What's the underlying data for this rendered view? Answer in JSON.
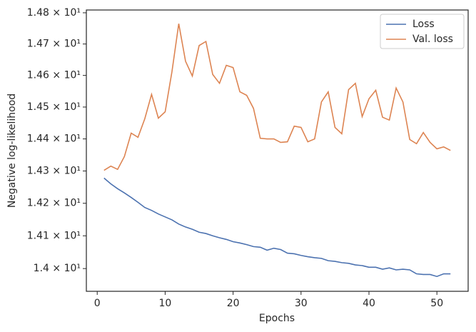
{
  "chart_data": {
    "type": "line",
    "xlabel": "Epochs",
    "ylabel": "Negative log-likelihood",
    "yscale": "log",
    "legend": "upper right",
    "grid": false,
    "xlim": [
      -1.6,
      54.6
    ],
    "xticks": [
      0,
      10,
      20,
      30,
      40,
      50
    ],
    "ylim": [
      13.931,
      14.809
    ],
    "yticks": [
      {
        "value": 14.0,
        "label": "1.4 × 10¹"
      },
      {
        "value": 14.1,
        "label": "1.41 × 10¹"
      },
      {
        "value": 14.2,
        "label": "1.42 × 10¹"
      },
      {
        "value": 14.3,
        "label": "1.43 × 10¹"
      },
      {
        "value": 14.4,
        "label": "1.44 × 10¹"
      },
      {
        "value": 14.5,
        "label": "1.45 × 10¹"
      },
      {
        "value": 14.6,
        "label": "1.46 × 10¹"
      },
      {
        "value": 14.7,
        "label": "1.47 × 10¹"
      },
      {
        "value": 14.8,
        "label": "1.48 × 10¹"
      }
    ],
    "x": [
      1,
      2,
      3,
      4,
      5,
      6,
      7,
      8,
      9,
      10,
      11,
      12,
      13,
      14,
      15,
      16,
      17,
      18,
      19,
      20,
      21,
      22,
      23,
      24,
      25,
      26,
      27,
      28,
      29,
      30,
      31,
      32,
      33,
      34,
      35,
      36,
      37,
      38,
      39,
      40,
      41,
      42,
      43,
      44,
      45,
      46,
      47,
      48,
      49,
      50,
      51,
      52
    ],
    "series": [
      {
        "name": "Loss",
        "color": "#4c72b0",
        "values": [
          14.278,
          14.26,
          14.245,
          14.232,
          14.218,
          14.203,
          14.187,
          14.178,
          14.167,
          14.158,
          14.149,
          14.136,
          14.127,
          14.12,
          14.111,
          14.107,
          14.1,
          14.094,
          14.089,
          14.082,
          14.078,
          14.073,
          14.067,
          14.065,
          14.056,
          14.062,
          14.058,
          14.047,
          14.045,
          14.04,
          14.036,
          14.033,
          14.031,
          14.024,
          14.022,
          14.018,
          14.016,
          14.011,
          14.009,
          14.004,
          14.004,
          13.998,
          14.002,
          13.996,
          13.998,
          13.996,
          13.984,
          13.982,
          13.982,
          13.976,
          13.984,
          13.984
        ]
      },
      {
        "name": "Val. loss",
        "color": "#dd8452",
        "values": [
          14.302,
          14.315,
          14.305,
          14.345,
          14.418,
          14.405,
          14.463,
          14.54,
          14.465,
          14.485,
          14.612,
          14.765,
          14.645,
          14.598,
          14.695,
          14.708,
          14.603,
          14.575,
          14.632,
          14.625,
          14.548,
          14.537,
          14.496,
          14.402,
          14.4,
          14.4,
          14.389,
          14.391,
          14.44,
          14.436,
          14.391,
          14.4,
          14.516,
          14.548,
          14.436,
          14.416,
          14.555,
          14.575,
          14.47,
          14.526,
          14.553,
          14.468,
          14.459,
          14.56,
          14.516,
          14.398,
          14.385,
          14.42,
          14.389,
          14.369,
          14.375,
          14.364
        ]
      }
    ]
  }
}
